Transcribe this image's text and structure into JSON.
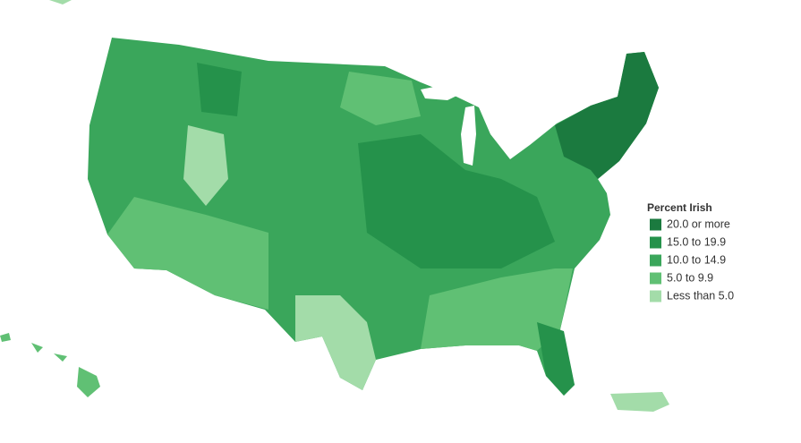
{
  "legend": {
    "title": "Percent Irish",
    "items": [
      {
        "label": "20.0 or more",
        "color": "#1b7a3f"
      },
      {
        "label": "15.0 to 19.9",
        "color": "#25924b"
      },
      {
        "label": "10.0 to 14.9",
        "color": "#3aa65b"
      },
      {
        "label": "5.0 to 9.9",
        "color": "#60c074"
      },
      {
        "label": "Less than 5.0",
        "color": "#a3dca9"
      }
    ]
  }
}
